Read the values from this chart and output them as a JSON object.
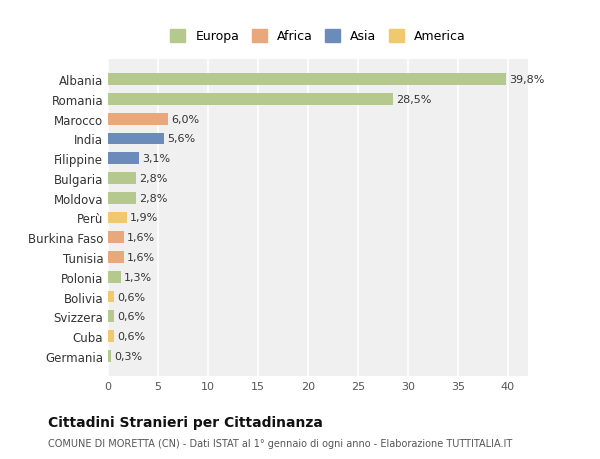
{
  "categories": [
    "Albania",
    "Romania",
    "Marocco",
    "India",
    "Filippine",
    "Bulgaria",
    "Moldova",
    "Perù",
    "Burkina Faso",
    "Tunisia",
    "Polonia",
    "Bolivia",
    "Svizzera",
    "Cuba",
    "Germania"
  ],
  "values": [
    39.8,
    28.5,
    6.0,
    5.6,
    3.1,
    2.8,
    2.8,
    1.9,
    1.6,
    1.6,
    1.3,
    0.6,
    0.6,
    0.6,
    0.3
  ],
  "labels": [
    "39,8%",
    "28,5%",
    "6,0%",
    "5,6%",
    "3,1%",
    "2,8%",
    "2,8%",
    "1,9%",
    "1,6%",
    "1,6%",
    "1,3%",
    "0,6%",
    "0,6%",
    "0,6%",
    "0,3%"
  ],
  "colors": [
    "#b5c98e",
    "#b5c98e",
    "#e8a87c",
    "#6b8cba",
    "#6b8cba",
    "#b5c98e",
    "#b5c98e",
    "#f0c96e",
    "#e8a87c",
    "#e8a87c",
    "#b5c98e",
    "#f0c96e",
    "#b5c98e",
    "#f0c96e",
    "#b5c98e"
  ],
  "legend_labels": [
    "Europa",
    "Africa",
    "Asia",
    "America"
  ],
  "legend_colors": [
    "#b5c98e",
    "#e8a87c",
    "#6b8cba",
    "#f0c96e"
  ],
  "title": "Cittadini Stranieri per Cittadinanza",
  "subtitle": "COMUNE DI MORETTA (CN) - Dati ISTAT al 1° gennaio di ogni anno - Elaborazione TUTTITALIA.IT",
  "xlim": [
    0,
    42
  ],
  "xticks": [
    0,
    5,
    10,
    15,
    20,
    25,
    30,
    35,
    40
  ],
  "background_color": "#ffffff",
  "plot_bg_color": "#f0f0f0"
}
